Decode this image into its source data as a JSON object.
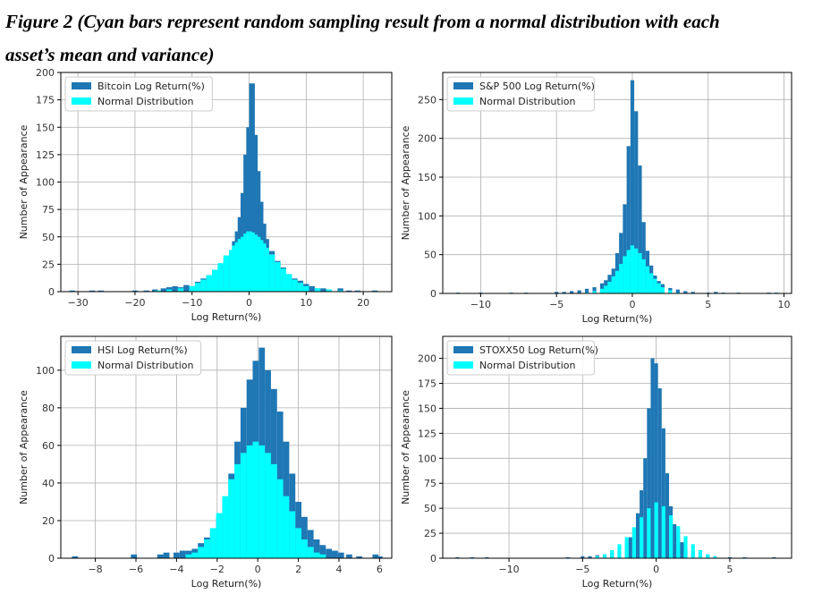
{
  "caption": {
    "line1": "Figure 2 (Cyan bars represent random sampling result from a normal distribution with each",
    "line2": "asset’s mean and variance)"
  },
  "colors": {
    "empirical": "#1f77b4",
    "normal": "#00ffff",
    "grid": "#b0b0b0",
    "axes": "#000000"
  },
  "chart_data": [
    {
      "type": "bar",
      "title": "",
      "xlabel": "Log Return(%)",
      "ylabel": "Number of Appearance",
      "xlim": [
        -33,
        25
      ],
      "ylim": [
        0,
        200
      ],
      "xticks": [
        -30,
        -20,
        -10,
        0,
        10,
        20
      ],
      "yticks": [
        0,
        25,
        50,
        75,
        100,
        125,
        150,
        175,
        200
      ],
      "grid": true,
      "legend_position": "top-left",
      "series": [
        {
          "name": "Bitcoin Log Return(%)",
          "x": [
            -31.0,
            -27.5,
            -26.0,
            -20.0,
            -18.0,
            -16.5,
            -15.0,
            -14.0,
            -13.0,
            -12.0,
            -11.0,
            -10.0,
            -9.0,
            -8.0,
            -7.0,
            -6.0,
            -5.0,
            -4.0,
            -3.0,
            -2.5,
            -2.0,
            -1.5,
            -1.0,
            -0.5,
            0.0,
            0.5,
            1.0,
            1.5,
            2.0,
            2.5,
            3.0,
            4.0,
            5.0,
            6.0,
            7.0,
            8.0,
            9.0,
            10.0,
            11.0,
            12.0,
            13.0,
            14.0,
            16.0,
            17.5,
            19.0,
            22.0
          ],
          "values": [
            1,
            1,
            1,
            1,
            1,
            2,
            3,
            4,
            5,
            4,
            6,
            5,
            9,
            12,
            15,
            19,
            24,
            30,
            38,
            46,
            55,
            68,
            90,
            125,
            150,
            190,
            143,
            110,
            82,
            62,
            48,
            37,
            28,
            22,
            16,
            12,
            10,
            7,
            5,
            3,
            3,
            2,
            3,
            1,
            1,
            1
          ]
        },
        {
          "name": "Normal Distribution",
          "x": [
            -16.0,
            -14.0,
            -12.0,
            -10.0,
            -9.0,
            -8.0,
            -7.0,
            -6.0,
            -5.0,
            -4.0,
            -3.0,
            -2.5,
            -2.0,
            -1.5,
            -1.0,
            -0.5,
            0.0,
            0.5,
            1.0,
            1.5,
            2.0,
            2.5,
            3.0,
            4.0,
            5.0,
            6.0,
            7.0,
            8.0,
            9.0,
            10.0,
            12.0,
            14.0,
            16.0
          ],
          "values": [
            1,
            2,
            3,
            5,
            8,
            11,
            15,
            20,
            26,
            33,
            38,
            42,
            45,
            48,
            50,
            53,
            55,
            54,
            52,
            50,
            47,
            44,
            40,
            34,
            27,
            21,
            16,
            11,
            8,
            5,
            3,
            2,
            1
          ]
        }
      ]
    },
    {
      "type": "bar",
      "title": "",
      "xlabel": "Log Return(%)",
      "ylabel": "Number of Appearance",
      "xlim": [
        -12.5,
        10.5
      ],
      "ylim": [
        0,
        285
      ],
      "xticks": [
        -10,
        -5,
        0,
        5,
        10
      ],
      "yticks": [
        0,
        50,
        100,
        150,
        200,
        250
      ],
      "grid": true,
      "legend_position": "top-left",
      "series": [
        {
          "name": "S&P 500 Log Return(%)",
          "x": [
            -11.5,
            -10.0,
            -8.0,
            -7.0,
            -5.0,
            -4.5,
            -4.0,
            -3.5,
            -3.0,
            -2.5,
            -2.0,
            -1.75,
            -1.5,
            -1.25,
            -1.0,
            -0.75,
            -0.5,
            -0.25,
            0.0,
            0.25,
            0.5,
            0.75,
            1.0,
            1.25,
            1.5,
            1.75,
            2.0,
            2.5,
            3.0,
            3.5,
            4.0,
            5.0,
            5.5,
            6.0,
            7.0,
            9.0,
            9.5
          ],
          "values": [
            1,
            1,
            1,
            1,
            2,
            2,
            3,
            4,
            6,
            8,
            13,
            17,
            24,
            32,
            52,
            78,
            115,
            190,
            275,
            235,
            165,
            92,
            55,
            36,
            23,
            16,
            12,
            7,
            5,
            3,
            2,
            1,
            2,
            1,
            1,
            1,
            1
          ]
        },
        {
          "name": "Normal Distribution",
          "x": [
            -3.0,
            -2.5,
            -2.0,
            -1.75,
            -1.5,
            -1.25,
            -1.0,
            -0.75,
            -0.5,
            -0.25,
            0.0,
            0.25,
            0.5,
            0.75,
            1.0,
            1.25,
            1.5,
            1.75,
            2.0,
            2.5,
            3.0
          ],
          "values": [
            1,
            3,
            6,
            10,
            15,
            22,
            29,
            38,
            48,
            56,
            62,
            58,
            52,
            44,
            35,
            26,
            19,
            13,
            8,
            4,
            1
          ]
        }
      ]
    },
    {
      "type": "bar",
      "title": "",
      "xlabel": "Log Return(%)",
      "ylabel": "Number of Appearance",
      "xlim": [
        -9.7,
        6.6
      ],
      "ylim": [
        0,
        118
      ],
      "xticks": [
        -8,
        -6,
        -4,
        -2,
        0,
        2,
        4,
        6
      ],
      "yticks": [
        0,
        20,
        40,
        60,
        80,
        100
      ],
      "grid": true,
      "legend_position": "top-left",
      "series": [
        {
          "name": "HSI Log Return(%)",
          "x": [
            -9.0,
            -6.1,
            -4.8,
            -4.5,
            -4.0,
            -3.7,
            -3.4,
            -3.1,
            -2.8,
            -2.5,
            -2.2,
            -1.9,
            -1.6,
            -1.3,
            -1.0,
            -0.7,
            -0.4,
            -0.1,
            0.2,
            0.5,
            0.8,
            1.1,
            1.4,
            1.7,
            2.0,
            2.3,
            2.6,
            2.9,
            3.2,
            3.5,
            3.8,
            4.1,
            4.5,
            5.0,
            5.8,
            6.0
          ],
          "values": [
            1,
            2,
            2,
            3,
            3,
            4,
            4,
            5,
            8,
            11,
            15,
            22,
            32,
            45,
            62,
            80,
            95,
            105,
            112,
            100,
            90,
            78,
            62,
            45,
            30,
            22,
            15,
            10,
            7,
            5,
            4,
            3,
            2,
            1,
            2,
            1
          ]
        },
        {
          "name": "Normal Distribution",
          "x": [
            -3.4,
            -3.1,
            -2.8,
            -2.5,
            -2.2,
            -1.9,
            -1.6,
            -1.3,
            -1.0,
            -0.7,
            -0.4,
            -0.1,
            0.2,
            0.5,
            0.8,
            1.1,
            1.4,
            1.7,
            2.0,
            2.3,
            2.6,
            2.9,
            3.2
          ],
          "values": [
            2,
            3,
            6,
            10,
            16,
            24,
            33,
            42,
            50,
            56,
            60,
            62,
            60,
            56,
            50,
            42,
            33,
            25,
            16,
            10,
            6,
            3,
            2
          ]
        }
      ]
    },
    {
      "type": "bar",
      "title": "",
      "xlabel": "Log Return(%)",
      "ylabel": "Number of Appearance",
      "xlim": [
        -14.5,
        9.2
      ],
      "ylim": [
        0,
        222
      ],
      "xticks": [
        -10,
        -5,
        0,
        5
      ],
      "yticks": [
        0,
        25,
        50,
        75,
        100,
        125,
        150,
        175,
        200
      ],
      "grid": true,
      "legend_position": "top-left",
      "series": [
        {
          "name": "STOXX50 Log Return(%)",
          "x": [
            -13.5,
            -12.5,
            -11.5,
            -6.0,
            -5.0,
            -4.5,
            -4.0,
            -3.5,
            -3.0,
            -2.5,
            -2.0,
            -1.75,
            -1.5,
            -1.25,
            -1.0,
            -0.75,
            -0.5,
            -0.25,
            0.0,
            0.25,
            0.5,
            0.75,
            1.0,
            1.25,
            1.5,
            1.75,
            2.0,
            2.5,
            3.0,
            3.5,
            4.0,
            5.0,
            6.0,
            8.0
          ],
          "values": [
            1,
            1,
            1,
            1,
            2,
            2,
            3,
            4,
            6,
            9,
            15,
            21,
            30,
            45,
            68,
            100,
            150,
            200,
            195,
            170,
            130,
            85,
            52,
            34,
            23,
            16,
            11,
            7,
            5,
            3,
            2,
            1,
            1,
            1
          ]
        },
        {
          "name": "Normal Distribution",
          "x": [
            -4.0,
            -3.5,
            -3.0,
            -2.5,
            -2.0,
            -1.5,
            -1.0,
            -0.5,
            0.0,
            0.5,
            1.0,
            1.5,
            2.0,
            2.5,
            3.0,
            3.5,
            4.0
          ],
          "values": [
            2,
            4,
            8,
            14,
            21,
            31,
            41,
            50,
            56,
            52,
            43,
            32,
            22,
            14,
            8,
            4,
            2
          ]
        }
      ]
    }
  ]
}
